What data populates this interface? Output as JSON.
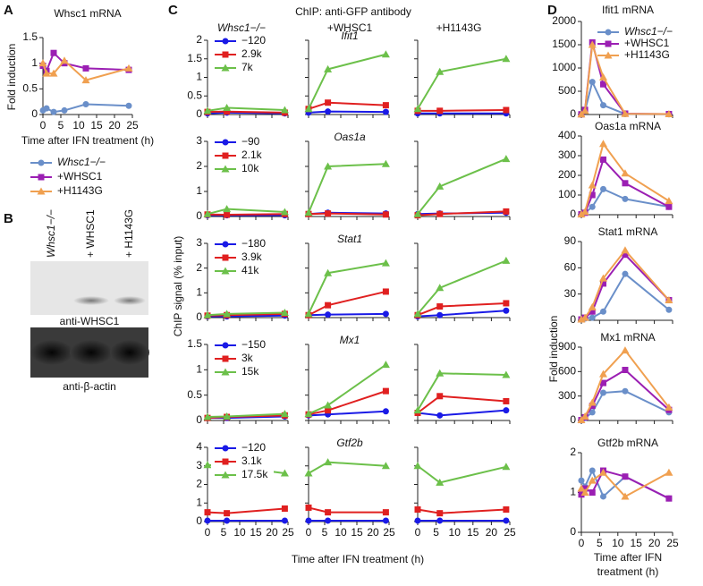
{
  "panel_labels": [
    "A",
    "B",
    "C",
    "D"
  ],
  "blot": {
    "lanes": [
      "Whsc1−/−",
      "+ WHSC1",
      "+ H1143G"
    ],
    "antibodies": [
      "anti-WHSC1",
      "anti-β-actin"
    ]
  },
  "chip": {
    "title": "ChIP: anti-GFP antibody",
    "columns": [
      "Whsc1−/−",
      "+WHSC1",
      "+H1143G"
    ],
    "ylabel": "ChIP signal (% input)",
    "xlabel": "Time after IFN treatment (h)"
  },
  "mrna": {
    "ylabel": "Fold induction",
    "xlabel": [
      "Time after IFN",
      "treatment (h)"
    ]
  },
  "chart_data": [
    {
      "type": "line",
      "title": "Whsc1 mRNA",
      "xlabel": "Time after IFN treatment (h)",
      "ylabel": "Fold induction",
      "x": [
        0,
        1,
        3,
        6,
        12,
        24
      ],
      "xlim": [
        0,
        25
      ],
      "xticks": [
        0,
        5,
        10,
        15,
        20,
        25
      ],
      "ylim": [
        0,
        1.5
      ],
      "yticks": [
        0,
        0.5,
        1,
        1.5
      ],
      "series": [
        {
          "name": "Whsc1−/−",
          "color": "#6a8fc9",
          "marker": "circle",
          "values": [
            0.08,
            0.12,
            0.05,
            0.08,
            0.2,
            0.17
          ]
        },
        {
          "name": "+WHSC1",
          "color": "#9b1fb3",
          "marker": "square",
          "values": [
            0.95,
            0.85,
            1.2,
            1.0,
            0.9,
            0.87
          ]
        },
        {
          "name": "+H1143G",
          "color": "#f0a050",
          "marker": "triangle",
          "values": [
            1.0,
            0.8,
            0.8,
            1.05,
            0.67,
            0.9
          ]
        }
      ]
    },
    {
      "type": "line",
      "title": "Ifit1",
      "x": [
        0,
        6,
        24
      ],
      "xlim": [
        0,
        25
      ],
      "xticks": [
        0,
        5,
        10,
        15,
        20,
        25
      ],
      "ylim": [
        0,
        2
      ],
      "yticks": [
        0,
        0.5,
        1,
        1.5,
        2
      ],
      "series": [
        {
          "name": "−120",
          "color": "#1a1ae6",
          "marker": "circle",
          "values": [
            [
              0.03,
              0.05,
              0.03
            ],
            [
              0.05,
              0.08,
              0.07
            ],
            [
              0.03,
              0.03,
              0.03
            ]
          ]
        },
        {
          "name": "2.9k",
          "color": "#e02020",
          "marker": "square",
          "values": [
            [
              0.07,
              0.08,
              0.05
            ],
            [
              0.15,
              0.32,
              0.25
            ],
            [
              0.1,
              0.1,
              0.12
            ]
          ]
        },
        {
          "name": "7k",
          "color": "#6cc04a",
          "marker": "triangle",
          "values": [
            [
              0.1,
              0.18,
              0.12
            ],
            [
              0.15,
              1.22,
              1.62
            ],
            [
              0.15,
              1.15,
              1.5
            ]
          ]
        }
      ]
    },
    {
      "type": "line",
      "title": "Oas1a",
      "x": [
        0,
        6,
        24
      ],
      "xlim": [
        0,
        25
      ],
      "xticks": [
        0,
        5,
        10,
        15,
        20,
        25
      ],
      "ylim": [
        0,
        3
      ],
      "yticks": [
        0,
        1,
        2,
        3
      ],
      "series": [
        {
          "name": "−90",
          "color": "#1a1ae6",
          "marker": "circle",
          "values": [
            [
              0.05,
              0.05,
              0.05
            ],
            [
              0.1,
              0.15,
              0.12
            ],
            [
              0.1,
              0.12,
              0.15
            ]
          ]
        },
        {
          "name": "2.1k",
          "color": "#e02020",
          "marker": "square",
          "values": [
            [
              0.08,
              0.07,
              0.1
            ],
            [
              0.1,
              0.12,
              0.08
            ],
            [
              0.05,
              0.1,
              0.2
            ]
          ]
        },
        {
          "name": "10k",
          "color": "#6cc04a",
          "marker": "triangle",
          "values": [
            [
              0.1,
              0.3,
              0.18
            ],
            [
              0.15,
              2.0,
              2.1
            ],
            [
              0.1,
              1.2,
              2.3
            ]
          ]
        }
      ]
    },
    {
      "type": "line",
      "title": "Stat1",
      "x": [
        0,
        6,
        24
      ],
      "xlim": [
        0,
        25
      ],
      "xticks": [
        0,
        5,
        10,
        15,
        20,
        25
      ],
      "ylim": [
        0,
        3
      ],
      "yticks": [
        0,
        1,
        2,
        3
      ],
      "series": [
        {
          "name": "−180",
          "color": "#1a1ae6",
          "marker": "circle",
          "values": [
            [
              0.05,
              0.05,
              0.08
            ],
            [
              0.1,
              0.12,
              0.15
            ],
            [
              0.05,
              0.1,
              0.28
            ]
          ]
        },
        {
          "name": "3.9k",
          "color": "#e02020",
          "marker": "square",
          "values": [
            [
              0.08,
              0.1,
              0.15
            ],
            [
              0.1,
              0.5,
              1.05
            ],
            [
              0.1,
              0.45,
              0.58
            ]
          ]
        },
        {
          "name": "41k",
          "color": "#6cc04a",
          "marker": "triangle",
          "values": [
            [
              0.1,
              0.15,
              0.2
            ],
            [
              0.15,
              1.8,
              2.2
            ],
            [
              0.15,
              1.2,
              2.3
            ]
          ]
        }
      ]
    },
    {
      "type": "line",
      "title": "Mx1",
      "x": [
        0,
        6,
        24
      ],
      "xlim": [
        0,
        25
      ],
      "xticks": [
        0,
        5,
        10,
        15,
        20,
        25
      ],
      "ylim": [
        0,
        1.5
      ],
      "yticks": [
        0,
        0.5,
        1,
        1.5
      ],
      "series": [
        {
          "name": "−150",
          "color": "#1a1ae6",
          "marker": "circle",
          "values": [
            [
              0.05,
              0.05,
              0.08
            ],
            [
              0.1,
              0.12,
              0.18
            ],
            [
              0.15,
              0.1,
              0.2
            ]
          ]
        },
        {
          "name": "3k",
          "color": "#e02020",
          "marker": "square",
          "values": [
            [
              0.05,
              0.07,
              0.1
            ],
            [
              0.12,
              0.2,
              0.58
            ],
            [
              0.15,
              0.48,
              0.38
            ]
          ]
        },
        {
          "name": "15k",
          "color": "#6cc04a",
          "marker": "triangle",
          "values": [
            [
              0.07,
              0.08,
              0.13
            ],
            [
              0.13,
              0.3,
              1.1
            ],
            [
              0.2,
              0.93,
              0.9
            ]
          ]
        }
      ]
    },
    {
      "type": "line",
      "title": "Gtf2b",
      "x": [
        0,
        6,
        24
      ],
      "xlim": [
        0,
        25
      ],
      "xticks": [
        0,
        5,
        10,
        15,
        20,
        25
      ],
      "ylim": [
        0,
        4
      ],
      "yticks": [
        0,
        1,
        2,
        3,
        4
      ],
      "series": [
        {
          "name": "−120",
          "color": "#1a1ae6",
          "marker": "circle",
          "values": [
            [
              0.05,
              0.05,
              0.05
            ],
            [
              0.05,
              0.05,
              0.05
            ],
            [
              0.05,
              0.05,
              0.05
            ]
          ]
        },
        {
          "name": "3.1k",
          "color": "#e02020",
          "marker": "square",
          "values": [
            [
              0.5,
              0.45,
              0.7
            ],
            [
              0.75,
              0.5,
              0.5
            ],
            [
              0.65,
              0.45,
              0.65
            ]
          ]
        },
        {
          "name": "17.5k",
          "color": "#6cc04a",
          "marker": "triangle",
          "values": [
            [
              3.05,
              3.0,
              2.6
            ],
            [
              2.6,
              3.2,
              3.0
            ],
            [
              3.0,
              2.1,
              2.95
            ]
          ]
        }
      ]
    },
    {
      "type": "line",
      "title": "Ifit1 mRNA",
      "x": [
        0,
        1,
        3,
        6,
        12,
        24
      ],
      "xlim": [
        0,
        25
      ],
      "xticks": [
        0,
        5,
        10,
        15,
        20,
        25
      ],
      "ylim": [
        0,
        2000
      ],
      "yticks": [
        0,
        500,
        1000,
        1500,
        2000
      ],
      "series": [
        {
          "name": "Whsc1−/−",
          "color": "#6a8fc9",
          "marker": "circle",
          "values": [
            5,
            80,
            700,
            200,
            10,
            5
          ]
        },
        {
          "name": "+WHSC1",
          "color": "#9b1fb3",
          "marker": "square",
          "values": [
            5,
            100,
            1550,
            650,
            20,
            10
          ]
        },
        {
          "name": "+H1143G",
          "color": "#f0a050",
          "marker": "triangle",
          "values": [
            5,
            80,
            1500,
            800,
            15,
            10
          ]
        }
      ]
    },
    {
      "type": "line",
      "title": "Oas1a mRNA",
      "x": [
        0,
        1,
        3,
        6,
        12,
        24
      ],
      "xlim": [
        0,
        25
      ],
      "xticks": [
        0,
        5,
        10,
        15,
        20,
        25
      ],
      "ylim": [
        0,
        400
      ],
      "yticks": [
        0,
        100,
        200,
        300,
        400
      ],
      "series": [
        {
          "color": "#6a8fc9",
          "marker": "circle",
          "values": [
            2,
            10,
            40,
            130,
            80,
            40
          ]
        },
        {
          "color": "#9b1fb3",
          "marker": "square",
          "values": [
            2,
            10,
            100,
            280,
            160,
            40
          ]
        },
        {
          "color": "#f0a050",
          "marker": "triangle",
          "values": [
            2,
            15,
            150,
            360,
            210,
            70
          ]
        }
      ]
    },
    {
      "type": "line",
      "title": "Stat1 mRNA",
      "x": [
        0,
        1,
        3,
        6,
        12,
        24
      ],
      "xlim": [
        0,
        25
      ],
      "xticks": [
        0,
        5,
        10,
        15,
        20,
        25
      ],
      "ylim": [
        0,
        90
      ],
      "yticks": [
        0,
        30,
        60,
        90
      ],
      "series": [
        {
          "color": "#6a8fc9",
          "marker": "circle",
          "values": [
            1,
            2,
            3,
            10,
            53,
            12
          ]
        },
        {
          "color": "#9b1fb3",
          "marker": "square",
          "values": [
            1,
            3,
            10,
            42,
            75,
            23
          ]
        },
        {
          "color": "#f0a050",
          "marker": "triangle",
          "values": [
            1,
            3,
            15,
            48,
            80,
            23
          ]
        }
      ]
    },
    {
      "type": "line",
      "title": "Mx1 mRNA",
      "x": [
        0,
        1,
        3,
        6,
        12,
        24
      ],
      "xlim": [
        0,
        25
      ],
      "xticks": [
        0,
        5,
        10,
        15,
        20,
        25
      ],
      "ylim": [
        0,
        900
      ],
      "yticks": [
        0,
        300,
        600,
        900
      ],
      "series": [
        {
          "color": "#6a8fc9",
          "marker": "circle",
          "values": [
            5,
            30,
            100,
            340,
            360,
            100
          ]
        },
        {
          "color": "#9b1fb3",
          "marker": "square",
          "values": [
            5,
            40,
            180,
            460,
            620,
            130
          ]
        },
        {
          "color": "#f0a050",
          "marker": "triangle",
          "values": [
            5,
            50,
            220,
            570,
            860,
            160
          ]
        }
      ]
    },
    {
      "type": "line",
      "title": "Gtf2b mRNA",
      "x": [
        0,
        1,
        3,
        6,
        12,
        24
      ],
      "xlim": [
        0,
        25
      ],
      "xticks": [
        0,
        5,
        10,
        15,
        20,
        25
      ],
      "ylim": [
        0,
        2
      ],
      "yticks": [
        0,
        1,
        2
      ],
      "series": [
        {
          "color": "#6a8fc9",
          "marker": "circle",
          "values": [
            1.3,
            1.15,
            1.55,
            0.9,
            1.4,
            0.85
          ]
        },
        {
          "color": "#9b1fb3",
          "marker": "square",
          "values": [
            0.95,
            1.1,
            1.0,
            1.55,
            1.4,
            0.85
          ]
        },
        {
          "color": "#f0a050",
          "marker": "triangle",
          "values": [
            1.1,
            1.0,
            1.3,
            1.5,
            0.9,
            1.5
          ]
        }
      ]
    }
  ]
}
